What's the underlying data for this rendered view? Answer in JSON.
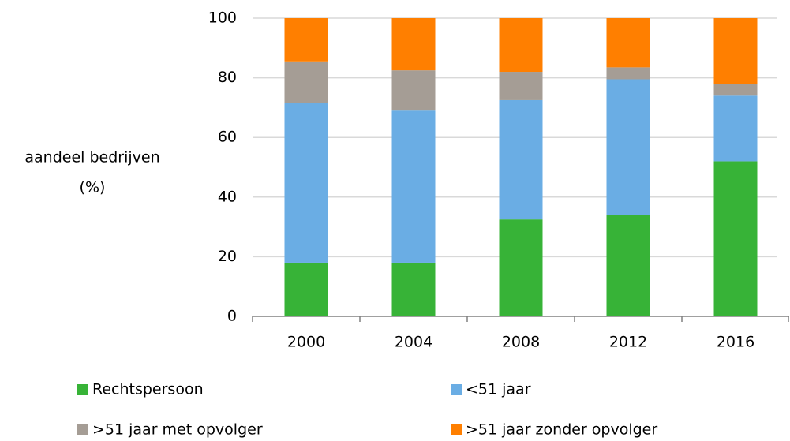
{
  "chart_data": {
    "type": "stacked_bar",
    "y_label_lines": [
      "aandeel bedrijven",
      "(%)"
    ],
    "categories": [
      "2000",
      "2004",
      "2008",
      "2012",
      "2016"
    ],
    "series": [
      {
        "name": "Rechtspersoon",
        "color": "#37b337",
        "values": [
          18,
          18,
          32.5,
          34,
          52
        ]
      },
      {
        "name": "<51 jaar",
        "color": "#6aade4",
        "values": [
          53.5,
          51,
          40,
          45.5,
          22
        ]
      },
      {
        "name": ">51 jaar met opvolger",
        "color": "#a59d95",
        "values": [
          14,
          13.5,
          9.5,
          4,
          4
        ]
      },
      {
        "name": ">51 jaar zonder opvolger",
        "color": "#ff7f00",
        "values": [
          14.5,
          17.5,
          18,
          16.5,
          22
        ]
      }
    ],
    "ylim": [
      0,
      100
    ],
    "yticks": [
      0,
      20,
      40,
      60,
      80,
      100
    ],
    "grid": true
  }
}
